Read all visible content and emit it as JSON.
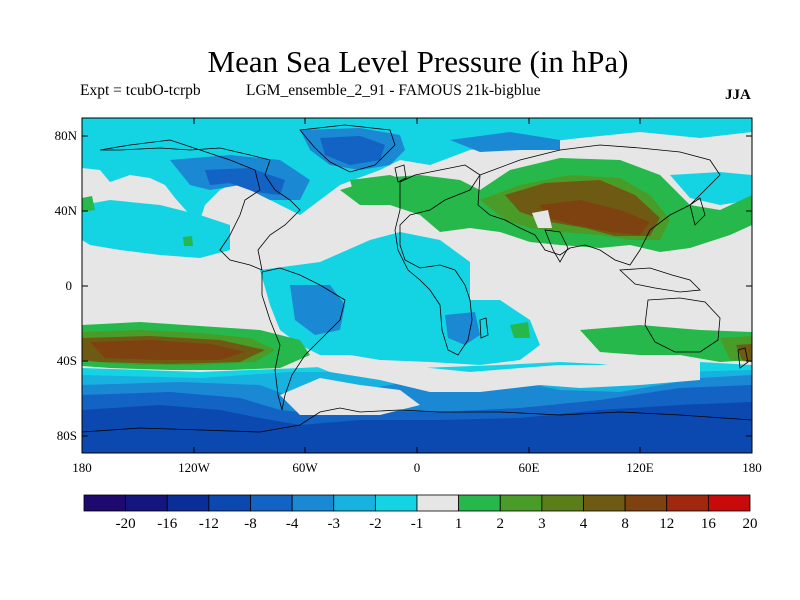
{
  "title": "Mean Sea Level Pressure (in hPa)",
  "subtitle_left": "Expt = tcubO-tcrpb",
  "subtitle_mid": "LGM_ensemble_2_91 - FAMOUS 21k-bigblue",
  "season": "JJA",
  "y_ticks": [
    "80N",
    "40N",
    "0",
    "40S",
    "80S"
  ],
  "x_ticks": [
    "180",
    "120W",
    "60W",
    "0",
    "60E",
    "120E",
    "180"
  ],
  "colorbar": {
    "labels": [
      "-20",
      "-16",
      "-12",
      "-8",
      "-4",
      "-3",
      "-2",
      "-1",
      "1",
      "2",
      "3",
      "4",
      "8",
      "12",
      "16",
      "20"
    ],
    "colors": [
      "#1e0a6e",
      "#14157e",
      "#0a2e98",
      "#0b48b0",
      "#1263c4",
      "#1a88d2",
      "#17b2e0",
      "#14d4e4",
      "#e6e6e6",
      "#26b84a",
      "#4a9c28",
      "#5c7e1a",
      "#6e5a12",
      "#7e4210",
      "#a0280e",
      "#c80a0a"
    ]
  },
  "chart_data": {
    "type": "heatmap",
    "title": "Mean Sea Level Pressure (in hPa)",
    "units": "hPa",
    "season": "JJA",
    "x_range": [
      -180,
      180
    ],
    "y_range": [
      -90,
      90
    ],
    "levels": [
      -20,
      -16,
      -12,
      -8,
      -4,
      -3,
      -2,
      -1,
      1,
      2,
      3,
      4,
      8,
      12,
      16,
      20
    ]
  }
}
